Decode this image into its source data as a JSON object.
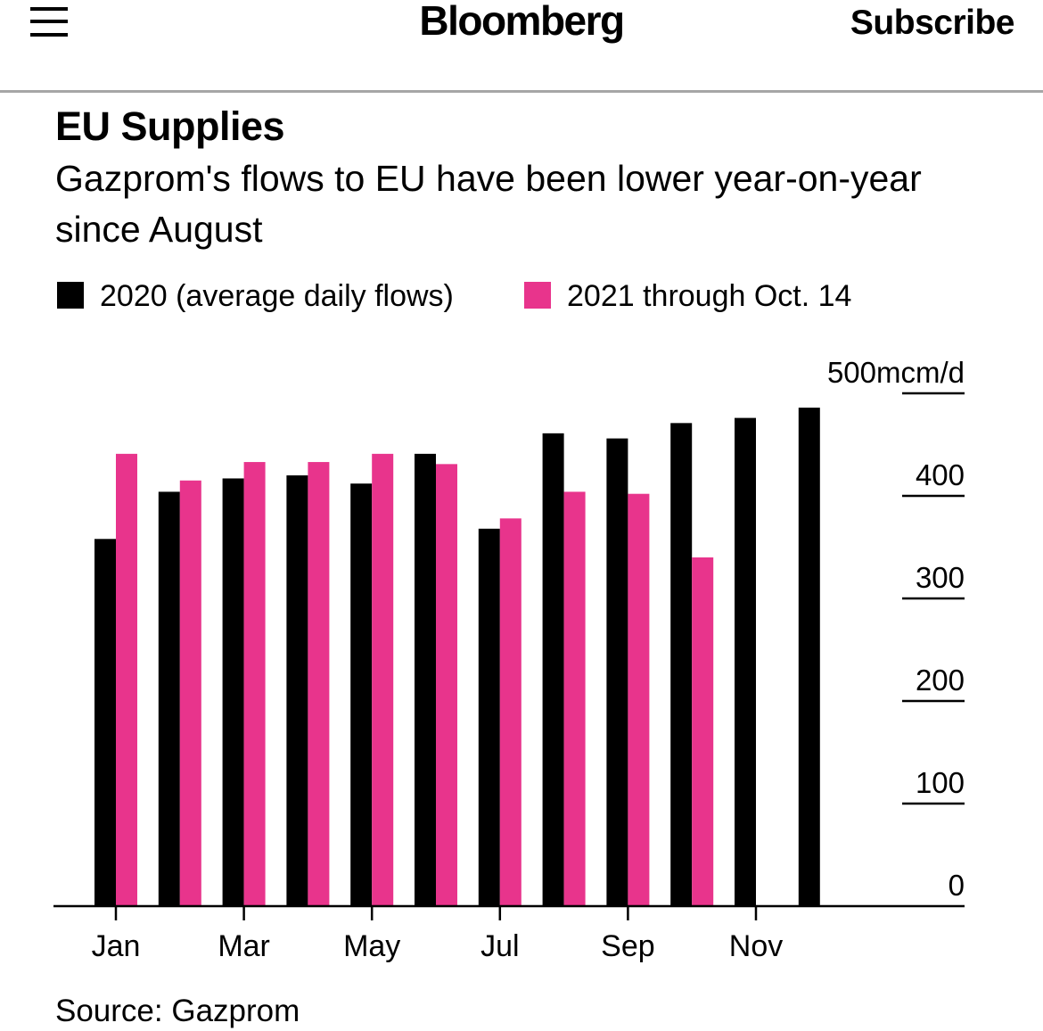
{
  "header": {
    "logo": "Bloomberg",
    "subscribe_label": "Subscribe",
    "menu_icon": "hamburger-menu-icon"
  },
  "chart_data": {
    "type": "bar",
    "title": "EU Supplies",
    "subtitle": "Gazprom's flows to EU have been lower year-on-year since August",
    "categories": [
      "Jan",
      "Feb",
      "Mar",
      "Apr",
      "May",
      "Jun",
      "Jul",
      "Aug",
      "Sep",
      "Oct",
      "Nov",
      "Dec"
    ],
    "x_tick_labels": [
      "Jan",
      "Mar",
      "May",
      "Jul",
      "Sep",
      "Nov"
    ],
    "series": [
      {
        "name": "2020 (average daily flows)",
        "color": "#000000",
        "values": [
          358,
          404,
          417,
          420,
          412,
          441,
          368,
          461,
          456,
          471,
          476,
          486
        ]
      },
      {
        "name": "2021 through Oct. 14",
        "color": "#e8348c",
        "values": [
          441,
          415,
          433,
          433,
          441,
          431,
          378,
          404,
          402,
          340,
          null,
          null
        ]
      }
    ],
    "ylabel": "mcm/d",
    "y_ticks": [
      0,
      100,
      200,
      300,
      400,
      500
    ],
    "y_tick_labels": [
      "0",
      "100",
      "200",
      "300",
      "400",
      "500mcm/d"
    ],
    "ylim": [
      0,
      500
    ],
    "y_axis_side": "right",
    "grid": false,
    "legend_position": "top-left"
  },
  "source": "Source: Gazprom"
}
